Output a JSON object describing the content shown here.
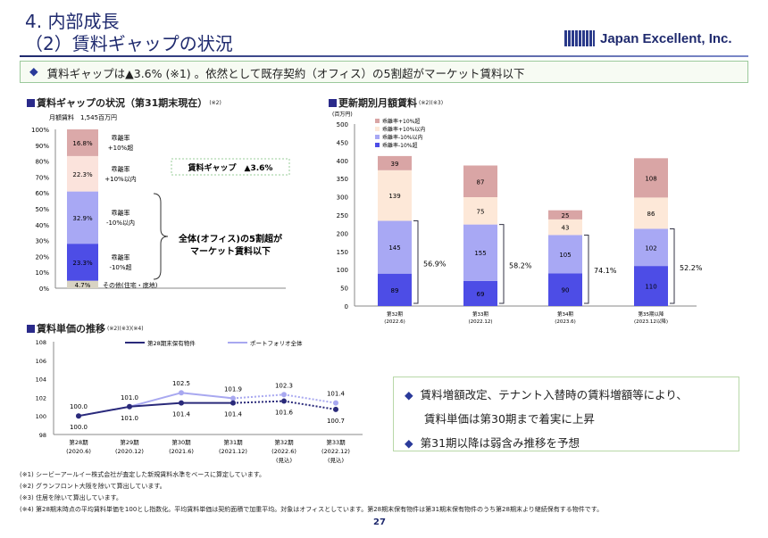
{
  "header": {
    "title_line1": "4. 内部成長",
    "title_line2": "（2）賃料ギャップの状況",
    "logo_text": "Japan Excellent, Inc."
  },
  "banner": {
    "bullet": "◆",
    "text": "賃料ギャップは▲3.6% (※1) 。依然として既存契約（オフィス）の5割超がマーケット賃料以下"
  },
  "left_chart": {
    "heading": "賃料ギャップの状況（第31期末現在）",
    "note": "(※2)",
    "monthly_rent": "月額賃料　1,545百万円",
    "gap_label": "賃料ギャップ　▲3.6%",
    "brace_label_line1": "全体(オフィス)の5割超が",
    "brace_label_line2": "マーケット賃料以下"
  },
  "right_chart": {
    "heading": "更新期別月額賃料",
    "note": "(※2)(※3)",
    "unit": "(百万円)"
  },
  "line_chart": {
    "heading": "賃料単価の推移",
    "note": "(※2)(※3)(※4)"
  },
  "right_box": {
    "bullet": "◆",
    "line1": "賃料増額改定、テナント入替時の賃料増額等により、",
    "line2": "賃料単価は第30期まで着実に上昇",
    "line3": "第31期以降は弱含み推移を予想"
  },
  "footnotes": [
    "(※1)  シービーアールイー株式会社が査定した新規賃料水準をベースに算定しています。",
    "(※2)  グランフロント大阪を除いて算出しています。",
    "(※3)  住居を除いて算出しています。",
    "(※4)  第28期末時点の平均賃料単価を100とし指数化。平均賃料単価は契約面積で加重平均。対象はオフィスとしています。第28期末保有物件は第31期末保有物件のうち第28期末より継続保有する物件です。"
  ],
  "page_number": "27",
  "chart_data": [
    {
      "type": "bar",
      "stacked": true,
      "ylim": [
        0,
        100
      ],
      "yticks": [
        "0%",
        "10%",
        "20%",
        "30%",
        "40%",
        "50%",
        "60%",
        "70%",
        "80%",
        "90%",
        "100%"
      ],
      "segments": [
        {
          "name": "その他(住宅・底地)",
          "value": 4.7,
          "label": "4.7%",
          "color": "#d8d3c3"
        },
        {
          "name": "乖離率\n-10%超",
          "value": 23.3,
          "label": "23.3%",
          "color": "#4d4de6"
        },
        {
          "name": "乖離率\n-10%以内",
          "value": 32.9,
          "label": "32.9%",
          "color": "#a8a8f4"
        },
        {
          "name": "乖離率\n+10%以内",
          "value": 22.3,
          "label": "22.3%",
          "color": "#fbe3dc"
        },
        {
          "name": "乖離率\n+10%超",
          "value": 16.8,
          "label": "16.8%",
          "color": "#dba9a9"
        }
      ]
    },
    {
      "type": "bar",
      "stacked": true,
      "ylim": [
        0,
        500
      ],
      "yticks": [
        "0",
        "50",
        "100",
        "150",
        "200",
        "250",
        "300",
        "350",
        "400",
        "450",
        "500"
      ],
      "categories": [
        "第32期\n(2022.6)",
        "第33期\n(2022.12)",
        "第34期\n(2023.6)",
        "第35期以降\n(2023.12以降)"
      ],
      "series": [
        {
          "name": "乖離率-10%超",
          "values": [
            89,
            69,
            90,
            110
          ],
          "color": "#4d4de6"
        },
        {
          "name": "乖離率-10%以内",
          "values": [
            145,
            155,
            105,
            102
          ],
          "color": "#a8a8f4"
        },
        {
          "name": "乖離率+10%以内",
          "values": [
            139,
            75,
            43,
            86
          ],
          "color": "#fde8d8"
        },
        {
          "name": "乖離率+10%超",
          "values": [
            39,
            87,
            25,
            108
          ],
          "color": "#d9a5a5"
        }
      ],
      "below_market_share": [
        "56.9%",
        "58.2%",
        "74.1%",
        "52.2%"
      ],
      "legend": "top-left"
    },
    {
      "type": "line",
      "ylim": [
        98,
        108
      ],
      "yticks": [
        "98",
        "100",
        "102",
        "104",
        "106",
        "108"
      ],
      "categories": [
        "第28期\n(2020.6)",
        "第29期\n(2020.12)",
        "第30期\n(2021.6)",
        "第31期\n(2021.12)",
        "第32期\n(2022.6)\n(見込)",
        "第33期\n(2022.12)\n(見込)"
      ],
      "series": [
        {
          "name": "第28期末保有物件",
          "values": [
            100.0,
            101.0,
            101.4,
            101.4,
            101.6,
            100.7
          ],
          "labels": [
            "100.0",
            "101.0",
            "101.4",
            "101.4",
            "101.6",
            "100.7"
          ],
          "color": "#2a2a7a"
        },
        {
          "name": "ポートフォリオ全体",
          "values": [
            100.0,
            101.0,
            102.5,
            101.9,
            102.3,
            101.4
          ],
          "labels": [
            "100.0",
            "101.0",
            "102.5",
            "101.9",
            "102.3",
            "101.4"
          ],
          "color": "#a8a8f0"
        }
      ],
      "forecast_from_index": 3,
      "legend": "top"
    }
  ]
}
